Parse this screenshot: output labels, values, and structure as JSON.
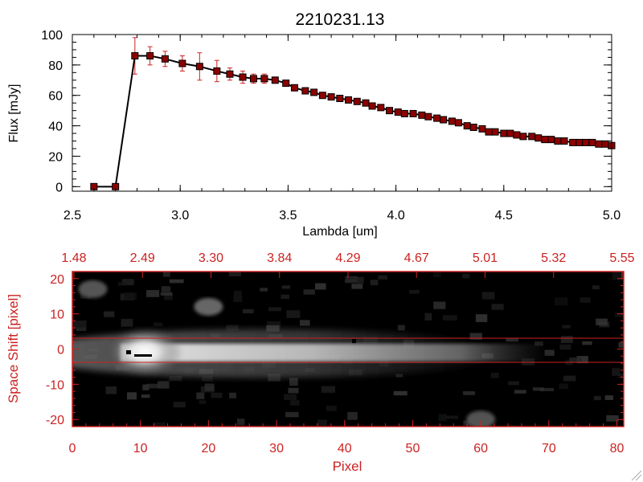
{
  "chart_data": [
    {
      "type": "line",
      "title": "2210231.13",
      "xlabel": "Lambda [um]",
      "ylabel": "Flux [mJy]",
      "xlim": [
        2.5,
        5.0
      ],
      "ylim": [
        -3,
        100
      ],
      "x_ticks": [
        "2.5",
        "3.0",
        "3.5",
        "4.0",
        "4.5",
        "5.0"
      ],
      "y_ticks": [
        "0",
        "20",
        "40",
        "60",
        "80",
        "100"
      ],
      "line_color": "#000000",
      "marker_color": "#8b0000",
      "errorbar_color": "#cc2222",
      "grid": false,
      "series": [
        {
          "x": [
            2.6,
            2.7,
            2.79,
            2.86,
            2.93,
            3.01,
            3.09,
            3.17,
            3.23,
            3.29,
            3.34,
            3.39,
            3.44,
            3.49,
            3.53,
            3.58,
            3.62,
            3.66,
            3.7,
            3.74,
            3.78,
            3.82,
            3.86,
            3.89,
            3.93,
            3.97,
            4.01,
            4.04,
            4.08,
            4.12,
            4.15,
            4.19,
            4.22,
            4.26,
            4.29,
            4.33,
            4.36,
            4.4,
            4.43,
            4.46,
            4.5,
            4.53,
            4.56,
            4.59,
            4.63,
            4.66,
            4.69,
            4.72,
            4.75,
            4.78,
            4.82,
            4.85,
            4.88,
            4.91,
            4.94,
            4.97,
            5.0
          ],
          "y": [
            0,
            0,
            86,
            86,
            84,
            81,
            79,
            76,
            74,
            72,
            71,
            71,
            70,
            68,
            65,
            63,
            62,
            60,
            59,
            58,
            57,
            56,
            55,
            53,
            52,
            50,
            49,
            48,
            48,
            47,
            46,
            45,
            44,
            43,
            42,
            40,
            39,
            38,
            36,
            36,
            35,
            35,
            34,
            33,
            33,
            32,
            31,
            31,
            30,
            30,
            29,
            29,
            29,
            29,
            28,
            28,
            27
          ],
          "yerr": [
            0,
            0,
            12,
            6,
            5,
            5,
            9,
            7,
            4,
            4,
            3,
            3,
            2,
            2,
            1.5,
            1.5,
            1.5,
            1.5,
            1.5,
            1.5,
            1.5,
            1.5,
            1.5,
            1.5,
            1.5,
            1.5,
            1.5,
            1.5,
            1.5,
            1.5,
            1.5,
            1.5,
            1.5,
            1.5,
            1.5,
            1.5,
            1.5,
            1.5,
            1.5,
            1.5,
            1.5,
            1.5,
            1.5,
            1.5,
            1.5,
            1.5,
            1.5,
            1.5,
            1.5,
            1.5,
            1.5,
            1.5,
            1.5,
            1.5,
            1.5,
            1.5,
            1.5
          ]
        }
      ]
    },
    {
      "type": "heatmap",
      "xlabel": "Pixel",
      "ylabel": "Space Shift [pixel]",
      "xlim": [
        0,
        81
      ],
      "ylim": [
        -22,
        22
      ],
      "x_ticks": [
        "0",
        "10",
        "20",
        "30",
        "40",
        "50",
        "60",
        "70",
        "80"
      ],
      "y_ticks": [
        "-20",
        "-10",
        "0",
        "10",
        "20"
      ],
      "top_axis_ticks": [
        "1.48",
        "2.49",
        "3.30",
        "3.84",
        "4.29",
        "4.67",
        "5.01",
        "5.32",
        "5.55"
      ],
      "axis_color": "#cc2222",
      "colormap": "grayscale",
      "extraction_window": [
        -3,
        3
      ],
      "sources": [
        {
          "x": 10,
          "y": 0,
          "brightness": 1.0
        },
        {
          "x": 20,
          "y": 12,
          "brightness": 0.35
        },
        {
          "x": 3,
          "y": 17,
          "brightness": 0.2
        },
        {
          "x": 60,
          "y": -20,
          "brightness": 0.18
        }
      ]
    }
  ]
}
